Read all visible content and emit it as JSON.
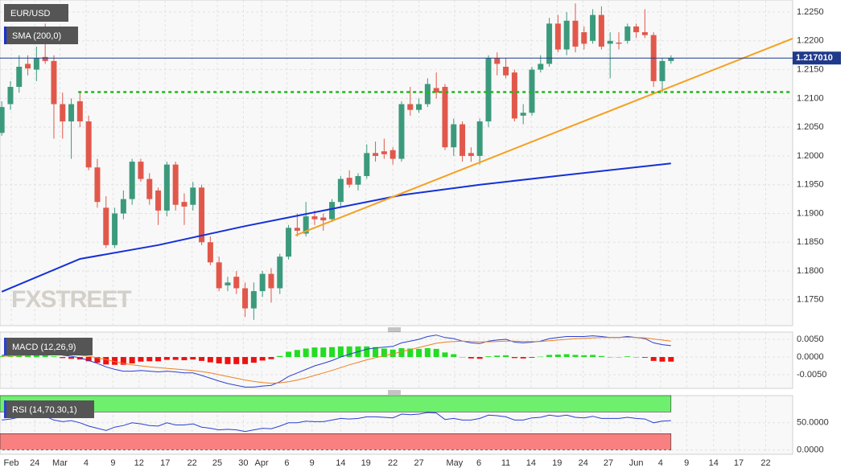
{
  "chart_data": {
    "type": "candlestick",
    "title": "EUR/USD",
    "watermark": "FXSTREET",
    "up_color": "#3c9a7c",
    "down_color": "#e1584b",
    "open": [
      1.204,
      1.209,
      1.212,
      1.216,
      1.215,
      1.2172,
      1.2165,
      1.209,
      1.206,
      1.2095,
      1.206,
      1.198,
      1.191,
      1.1845,
      1.19,
      1.1925,
      1.199,
      1.196,
      1.194,
      1.1905,
      1.1985,
      1.192,
      1.1915,
      1.1945,
      1.185,
      1.1815,
      1.1775,
      1.179,
      1.177,
      1.1735,
      1.1765,
      1.1795,
      1.177,
      1.1825,
      1.1875,
      1.1865,
      1.1895,
      1.1893,
      1.189,
      1.192,
      1.1962,
      1.195,
      1.1965,
      1.2005,
      1.2008,
      1.201,
      1.1995,
      1.209,
      1.208,
      1.209,
      1.2118,
      1.212,
      1.2015,
      1.2055,
      1.2005,
      1.2,
      1.206,
      1.217,
      1.2155,
      1.2145,
      1.207,
      1.2075,
      1.215,
      1.216,
      1.223,
      1.2185,
      1.2235,
      1.2215,
      1.22,
      1.2245,
      1.2195,
      1.2197,
      1.22,
      1.2225,
      1.2215,
      1.221,
      1.213,
      1.2165
    ],
    "high": [
      1.2095,
      1.213,
      1.2175,
      1.2175,
      1.219,
      1.223,
      1.2175,
      1.211,
      1.21,
      1.211,
      1.207,
      1.1995,
      1.193,
      1.191,
      1.194,
      1.1995,
      1.1995,
      1.197,
      1.1945,
      1.199,
      1.199,
      1.1935,
      1.1955,
      1.195,
      1.186,
      1.1825,
      1.179,
      1.18,
      1.178,
      1.178,
      1.18,
      1.1805,
      1.183,
      1.188,
      1.19,
      1.192,
      1.1905,
      1.19,
      1.1925,
      1.1965,
      1.1975,
      1.197,
      1.202,
      1.2025,
      1.203,
      1.2015,
      1.2095,
      1.212,
      1.21,
      1.2135,
      1.2145,
      1.2125,
      1.2065,
      1.206,
      1.2015,
      1.2065,
      1.2175,
      1.218,
      1.217,
      1.215,
      1.209,
      1.2155,
      1.2175,
      1.224,
      1.2245,
      1.225,
      1.2265,
      1.2225,
      1.2255,
      1.226,
      1.2215,
      1.2215,
      1.223,
      1.223,
      1.2255,
      1.2215,
      1.217,
      1.2175
    ],
    "low": [
      1.2035,
      1.208,
      1.211,
      1.214,
      1.213,
      1.216,
      1.203,
      1.203,
      1.1995,
      1.205,
      1.1975,
      1.191,
      1.184,
      1.184,
      1.189,
      1.1915,
      1.1955,
      1.1915,
      1.188,
      1.1895,
      1.1905,
      1.188,
      1.1905,
      1.1845,
      1.181,
      1.1765,
      1.1765,
      1.176,
      1.172,
      1.1715,
      1.1755,
      1.1745,
      1.176,
      1.182,
      1.186,
      1.186,
      1.188,
      1.187,
      1.1885,
      1.191,
      1.1945,
      1.194,
      1.196,
      1.199,
      1.1995,
      1.1985,
      1.199,
      1.207,
      1.2075,
      1.2085,
      1.21,
      1.201,
      1.2,
      1.199,
      1.199,
      1.1985,
      1.205,
      1.214,
      1.2135,
      1.206,
      1.2055,
      1.207,
      1.2145,
      1.2155,
      1.218,
      1.2175,
      1.218,
      1.2185,
      1.2195,
      1.2185,
      1.2135,
      1.2185,
      1.2195,
      1.2205,
      1.2205,
      1.212,
      1.211,
      1.216
    ],
    "close": [
      1.2085,
      1.212,
      1.2155,
      1.2152,
      1.217,
      1.2165,
      1.209,
      1.206,
      1.209,
      1.206,
      1.198,
      1.192,
      1.1845,
      1.19,
      1.1925,
      1.199,
      1.196,
      1.1925,
      1.1905,
      1.1985,
      1.1915,
      1.1912,
      1.1945,
      1.185,
      1.1815,
      1.177,
      1.178,
      1.177,
      1.1735,
      1.1765,
      1.1795,
      1.177,
      1.1825,
      1.1875,
      1.187,
      1.1895,
      1.189,
      1.1888,
      1.192,
      1.196,
      1.195,
      1.1965,
      1.2005,
      1.2,
      1.2003,
      1.1995,
      1.209,
      1.208,
      1.209,
      1.2125,
      1.211,
      1.2015,
      1.2055,
      1.2,
      1.2,
      1.206,
      1.217,
      1.216,
      1.214,
      1.2065,
      1.2075,
      1.215,
      1.216,
      1.223,
      1.2185,
      1.2235,
      1.219,
      1.2195,
      1.2245,
      1.219,
      1.22,
      1.2195,
      1.2225,
      1.2215,
      1.221,
      1.213,
      1.2165,
      1.217
    ],
    "xlim": [
      -0.2,
      91
    ],
    "xticks": [
      {
        "value": 1.1,
        "label": "Feb"
      },
      {
        "value": 3.8,
        "label": "24"
      },
      {
        "value": 6.7,
        "label": "Mar"
      },
      {
        "value": 9.7,
        "label": "4"
      },
      {
        "value": 12.8,
        "label": "9"
      },
      {
        "value": 15.8,
        "label": "12"
      },
      {
        "value": 18.8,
        "label": "17"
      },
      {
        "value": 21.9,
        "label": "22"
      },
      {
        "value": 24.8,
        "label": "25"
      },
      {
        "value": 27.8,
        "label": "30"
      },
      {
        "value": 29.9,
        "label": "Apr"
      },
      {
        "value": 32.8,
        "label": "6"
      },
      {
        "value": 35.7,
        "label": "9"
      },
      {
        "value": 39,
        "label": "14"
      },
      {
        "value": 41.9,
        "label": "19"
      },
      {
        "value": 45,
        "label": "22"
      },
      {
        "value": 48,
        "label": "27"
      },
      {
        "value": 52.1,
        "label": "May"
      },
      {
        "value": 54.9,
        "label": "6"
      },
      {
        "value": 58,
        "label": "11"
      },
      {
        "value": 60.9,
        "label": "14"
      },
      {
        "value": 63.9,
        "label": "19"
      },
      {
        "value": 66.9,
        "label": "24"
      },
      {
        "value": 69.8,
        "label": "27"
      },
      {
        "value": 73,
        "label": "Jun"
      },
      {
        "value": 75.8,
        "label": "4"
      },
      {
        "value": 78.8,
        "label": "9"
      },
      {
        "value": 81.9,
        "label": "14"
      },
      {
        "value": 84.8,
        "label": "17"
      },
      {
        "value": 87.9,
        "label": "22"
      }
    ],
    "ylim": [
      1.1705,
      1.2271
    ],
    "yticks": [
      {
        "value": 1.175,
        "label": "1.1750"
      },
      {
        "value": 1.18,
        "label": "1.1800"
      },
      {
        "value": 1.185,
        "label": "1.1850"
      },
      {
        "value": 1.19,
        "label": "1.1900"
      },
      {
        "value": 1.195,
        "label": "1.1950"
      },
      {
        "value": 1.2,
        "label": "1.2000"
      },
      {
        "value": 1.205,
        "label": "1.2050"
      },
      {
        "value": 1.21,
        "label": "1.2100"
      },
      {
        "value": 1.215,
        "label": "1.2150"
      },
      {
        "value": 1.22,
        "label": "1.2200"
      },
      {
        "value": 1.225,
        "label": "1.2250"
      }
    ],
    "grid": true,
    "last_price": {
      "value": 1.21701,
      "label": "1.217010",
      "color": "#1f3a8a"
    },
    "overlays": [
      {
        "name": "SMA (200,0)",
        "color": "#1530d8",
        "style": "solid",
        "x": [
          0,
          9,
          18,
          28,
          37,
          46,
          55,
          65,
          77
        ],
        "values": [
          1.1764,
          1.1821,
          1.1845,
          1.1878,
          1.1905,
          1.1932,
          1.195,
          1.1967,
          1.1987
        ]
      },
      {
        "color": "#f5a020",
        "style": "solid",
        "x": [
          33.8,
          91
        ],
        "values": [
          1.1862,
          1.2204
        ]
      },
      {
        "color": "#1fb81a",
        "style": "dotted",
        "x": [
          8.8,
          91
        ],
        "values": [
          1.2111,
          1.2111
        ]
      }
    ],
    "indicators": [
      {
        "type": "macd",
        "name": "MACD (12,26,9)",
        "macd_color": "#2a40d0",
        "signal_color": "#f08020",
        "up_color": "#22dd22",
        "down_color": "#ee1111",
        "macd": [
          0.0005,
          0.0005,
          0.0008,
          0.001,
          0.0012,
          0.0013,
          0.001,
          0.0005,
          0.0002,
          -0.0002,
          -0.001,
          -0.0018,
          -0.0028,
          -0.0035,
          -0.004,
          -0.004,
          -0.0038,
          -0.004,
          -0.0042,
          -0.004,
          -0.0042,
          -0.0045,
          -0.0045,
          -0.0052,
          -0.006,
          -0.0068,
          -0.0075,
          -0.008,
          -0.0085,
          -0.0085,
          -0.0082,
          -0.008,
          -0.007,
          -0.0055,
          -0.0045,
          -0.0035,
          -0.0025,
          -0.0018,
          -0.001,
          0.0,
          0.0008,
          0.0015,
          0.0022,
          0.0026,
          0.0028,
          0.003,
          0.004,
          0.0045,
          0.005,
          0.0058,
          0.0062,
          0.0055,
          0.0052,
          0.0045,
          0.004,
          0.0038,
          0.0045,
          0.0048,
          0.005,
          0.0042,
          0.004,
          0.0042,
          0.0045,
          0.0052,
          0.0055,
          0.0058,
          0.0058,
          0.0058,
          0.006,
          0.0058,
          0.0055,
          0.0055,
          0.0058,
          0.0055,
          0.0052,
          0.004,
          0.0035,
          0.0032
        ],
        "signal": [
          0.0003,
          0.0003,
          0.0004,
          0.0005,
          0.0007,
          0.0008,
          0.0008,
          0.0008,
          0.0007,
          0.0005,
          0.0002,
          -0.0002,
          -0.0007,
          -0.0013,
          -0.0018,
          -0.0022,
          -0.0025,
          -0.0028,
          -0.003,
          -0.0032,
          -0.0034,
          -0.0036,
          -0.0038,
          -0.0041,
          -0.0045,
          -0.005,
          -0.0055,
          -0.006,
          -0.0065,
          -0.0069,
          -0.0072,
          -0.0074,
          -0.0073,
          -0.007,
          -0.0065,
          -0.0059,
          -0.0052,
          -0.0045,
          -0.0038,
          -0.003,
          -0.0022,
          -0.0015,
          -0.0008,
          -0.0002,
          0.0004,
          0.0009,
          0.0015,
          0.0021,
          0.0027,
          0.0033,
          0.0039,
          0.0042,
          0.0044,
          0.0045,
          0.0044,
          0.0043,
          0.0043,
          0.0044,
          0.0045,
          0.0045,
          0.0044,
          0.0044,
          0.0044,
          0.0046,
          0.0048,
          0.005,
          0.0052,
          0.0053,
          0.0054,
          0.0055,
          0.0055,
          0.0055,
          0.0056,
          0.0055,
          0.0054,
          0.0051,
          0.0048,
          0.0045
        ],
        "histogram": [
          0.0002,
          0.0002,
          0.0004,
          0.0005,
          0.0005,
          0.0005,
          0.0002,
          -0.0003,
          -0.0005,
          -0.0007,
          -0.0012,
          -0.0016,
          -0.0021,
          -0.0022,
          -0.0022,
          -0.0018,
          -0.0013,
          -0.0012,
          -0.0012,
          -0.0008,
          -0.0008,
          -0.0009,
          -0.0007,
          -0.0011,
          -0.0015,
          -0.0018,
          -0.002,
          -0.002,
          -0.002,
          -0.0016,
          -0.001,
          -0.0006,
          0.0003,
          0.0015,
          0.002,
          0.0024,
          0.0027,
          0.0027,
          0.0028,
          0.003,
          0.003,
          0.003,
          0.003,
          0.0028,
          0.0024,
          0.0021,
          0.0025,
          0.0024,
          0.0023,
          0.0025,
          0.0023,
          0.0013,
          0.0008,
          0.0,
          -0.0004,
          -0.0005,
          0.0002,
          0.0004,
          0.0005,
          -0.0003,
          -0.0004,
          -0.0002,
          0.0001,
          0.0006,
          0.0007,
          0.0008,
          0.0006,
          0.0005,
          0.0006,
          0.0003,
          0.0,
          0.0,
          0.0002,
          0.0,
          -0.0002,
          -0.0011,
          -0.0013,
          -0.0013
        ],
        "ylim": [
          -0.00886,
          0.00705
        ],
        "yticks": [
          {
            "value": 0.005,
            "label": "0.0050"
          },
          {
            "value": 0,
            "label": "0.0000"
          },
          {
            "value": -0.005,
            "label": "-0.0050"
          }
        ]
      },
      {
        "type": "rsi",
        "name": "RSI (14,70,30,1)",
        "color": "#2a40d0",
        "values": [
          55,
          57,
          60,
          60,
          62,
          62,
          55,
          52,
          54,
          50,
          44,
          40,
          36,
          42,
          45,
          50,
          48,
          45,
          44,
          50,
          46,
          46,
          48,
          42,
          40,
          37,
          38,
          37,
          34,
          37,
          40,
          39,
          44,
          50,
          50,
          53,
          52,
          52,
          55,
          58,
          57,
          58,
          61,
          61,
          60,
          59,
          66,
          65,
          66,
          69,
          68,
          56,
          58,
          55,
          55,
          58,
          64,
          63,
          61,
          55,
          55,
          59,
          60,
          64,
          62,
          64,
          60,
          59,
          62,
          58,
          58,
          58,
          60,
          58,
          57,
          50,
          53,
          54
        ],
        "overbought": {
          "range": [
            70,
            100
          ],
          "color": "#6ef06e"
        },
        "oversold": {
          "range": [
            0,
            30
          ],
          "color": "#f88080"
        },
        "ylim": [
          -8,
          100
        ],
        "yticks": [
          {
            "value": 50,
            "label": "50.0000"
          },
          {
            "value": 0,
            "label": "0.0000"
          }
        ]
      }
    ]
  }
}
